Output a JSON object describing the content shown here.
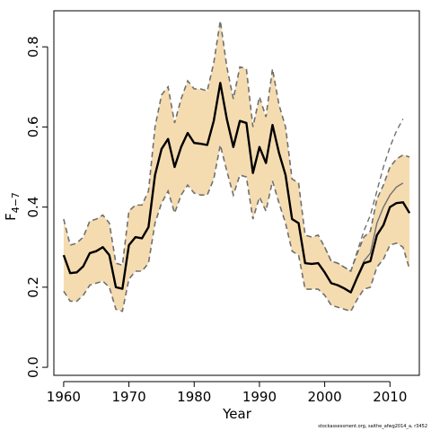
{
  "chart_data": {
    "type": "line",
    "xlabel": "Year",
    "ylabel_main": "F",
    "ylabel_sub": "4−7",
    "xlim": [
      1958.5,
      2014.5
    ],
    "ylim": [
      -0.02,
      0.89
    ],
    "x_ticks": [
      1960,
      1970,
      1980,
      1990,
      2000,
      2010
    ],
    "y_ticks": [
      0.0,
      0.2,
      0.4,
      0.6,
      0.8
    ],
    "y_tick_labels": [
      "0.0",
      "0.2",
      "0.4",
      "0.6",
      "0.8"
    ],
    "credit": "stockassessment.org, saithe_afwg2014_a, r3452",
    "colors": {
      "band": "#f5dcb0",
      "bounds": "#707070",
      "estimate": "#000000",
      "retro": "#707070"
    },
    "years": [
      1960,
      1961,
      1962,
      1963,
      1964,
      1965,
      1966,
      1967,
      1968,
      1969,
      1970,
      1971,
      1972,
      1973,
      1974,
      1975,
      1976,
      1977,
      1978,
      1979,
      1980,
      1981,
      1982,
      1983,
      1984,
      1985,
      1986,
      1987,
      1988,
      1989,
      1990,
      1991,
      1992,
      1993,
      1994,
      1995,
      1996,
      1997,
      1998,
      1999,
      2000,
      2001,
      2002,
      2003,
      2004,
      2005,
      2006,
      2007,
      2008,
      2009,
      2010,
      2011,
      2012,
      2013
    ],
    "series": [
      {
        "role": "estimate",
        "values": [
          0.28,
          0.235,
          0.237,
          0.252,
          0.285,
          0.29,
          0.3,
          0.28,
          0.2,
          0.196,
          0.305,
          0.325,
          0.322,
          0.35,
          0.48,
          0.545,
          0.57,
          0.5,
          0.55,
          0.585,
          0.56,
          0.558,
          0.555,
          0.615,
          0.71,
          0.62,
          0.55,
          0.615,
          0.61,
          0.485,
          0.55,
          0.51,
          0.605,
          0.535,
          0.48,
          0.37,
          0.36,
          0.26,
          0.258,
          0.26,
          0.237,
          0.21,
          0.205,
          0.197,
          0.187,
          0.225,
          0.26,
          0.265,
          0.33,
          0.355,
          0.4,
          0.41,
          0.412,
          0.385
        ]
      },
      {
        "role": "upper",
        "values": [
          0.37,
          0.305,
          0.31,
          0.325,
          0.365,
          0.37,
          0.38,
          0.36,
          0.26,
          0.255,
          0.39,
          0.405,
          0.405,
          0.44,
          0.6,
          0.68,
          0.7,
          0.61,
          0.67,
          0.715,
          0.695,
          0.695,
          0.69,
          0.76,
          0.865,
          0.75,
          0.67,
          0.75,
          0.745,
          0.6,
          0.675,
          0.625,
          0.745,
          0.655,
          0.6,
          0.47,
          0.46,
          0.33,
          0.325,
          0.33,
          0.3,
          0.265,
          0.26,
          0.25,
          0.24,
          0.285,
          0.325,
          0.34,
          0.42,
          0.455,
          0.5,
          0.52,
          0.53,
          0.525
        ]
      },
      {
        "role": "lower",
        "values": [
          0.19,
          0.165,
          0.165,
          0.18,
          0.205,
          0.21,
          0.215,
          0.2,
          0.145,
          0.14,
          0.22,
          0.24,
          0.24,
          0.26,
          0.36,
          0.41,
          0.44,
          0.385,
          0.43,
          0.455,
          0.435,
          0.43,
          0.43,
          0.47,
          0.555,
          0.49,
          0.43,
          0.48,
          0.475,
          0.37,
          0.425,
          0.39,
          0.465,
          0.41,
          0.36,
          0.29,
          0.28,
          0.195,
          0.195,
          0.195,
          0.18,
          0.155,
          0.15,
          0.145,
          0.14,
          0.17,
          0.195,
          0.2,
          0.25,
          0.27,
          0.305,
          0.31,
          0.3,
          0.245
        ]
      },
      {
        "role": "retrospective",
        "years": [
          2000,
          2001,
          2002,
          2003,
          2004,
          2005,
          2006,
          2007,
          2008,
          2009,
          2010,
          2011,
          2012
        ],
        "values": [
          0.237,
          0.21,
          0.205,
          0.197,
          0.187,
          0.226,
          0.265,
          0.285,
          0.36,
          0.4,
          0.43,
          0.45,
          0.46
        ]
      },
      {
        "role": "retrospective-upper",
        "years": [
          2000,
          2001,
          2002,
          2003,
          2004,
          2005,
          2006,
          2007,
          2008,
          2009,
          2010,
          2011,
          2012
        ],
        "values": [
          0.3,
          0.265,
          0.26,
          0.25,
          0.24,
          0.29,
          0.34,
          0.38,
          0.44,
          0.5,
          0.55,
          0.59,
          0.62
        ]
      }
    ]
  }
}
